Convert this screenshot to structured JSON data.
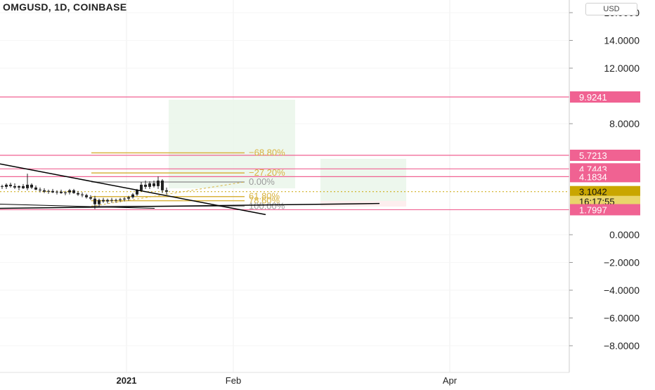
{
  "header": {
    "title": "OMGUSD, 1D, COINBASE",
    "currency": "USD"
  },
  "chart_data": {
    "type": "candlestick",
    "symbol": "OMGUSD",
    "interval": "1D",
    "exchange": "COINBASE",
    "y_ticks": [
      "16.0000",
      "14.0000",
      "12.0000",
      "8.0000",
      "0.0000",
      "−2.0000",
      "−4.0000",
      "−6.0000",
      "−8.0000"
    ],
    "x_ticks": [
      "2021",
      "Feb",
      "Apr"
    ],
    "price_labels": [
      {
        "label": "9.9241",
        "value": 9.9241,
        "kind": "level"
      },
      {
        "label": "5.7213",
        "value": 5.7213,
        "kind": "level"
      },
      {
        "label": "4.7443",
        "value": 4.7443,
        "kind": "level"
      },
      {
        "label": "4.1834",
        "value": 4.1834,
        "kind": "level"
      },
      {
        "label": "3.1042",
        "value": 3.1042,
        "kind": "last"
      },
      {
        "label": "16:17:55",
        "kind": "countdown"
      },
      {
        "label": "1.7997",
        "value": 1.7997,
        "kind": "level"
      }
    ],
    "fib_labels": [
      {
        "label": "−68.80%",
        "value": 5.9,
        "color": "#d8b340"
      },
      {
        "label": "−27.20%",
        "value": 4.45,
        "color": "#d8b340"
      },
      {
        "label": "0.00%",
        "value": 3.8,
        "color": "#9a9a9a"
      },
      {
        "label": "61.80%",
        "value": 2.75,
        "color": "#d8b340"
      },
      {
        "label": "78.60%",
        "value": 2.45,
        "color": "#d8b340"
      },
      {
        "label": "100.00%",
        "value": 2.05,
        "color": "#9a9a9a"
      }
    ],
    "colors": {
      "level": "#f06292",
      "last": "#c9a600",
      "fib": "#d8b340",
      "trend": "#000000",
      "long_zone": "#e8f5e9"
    }
  }
}
